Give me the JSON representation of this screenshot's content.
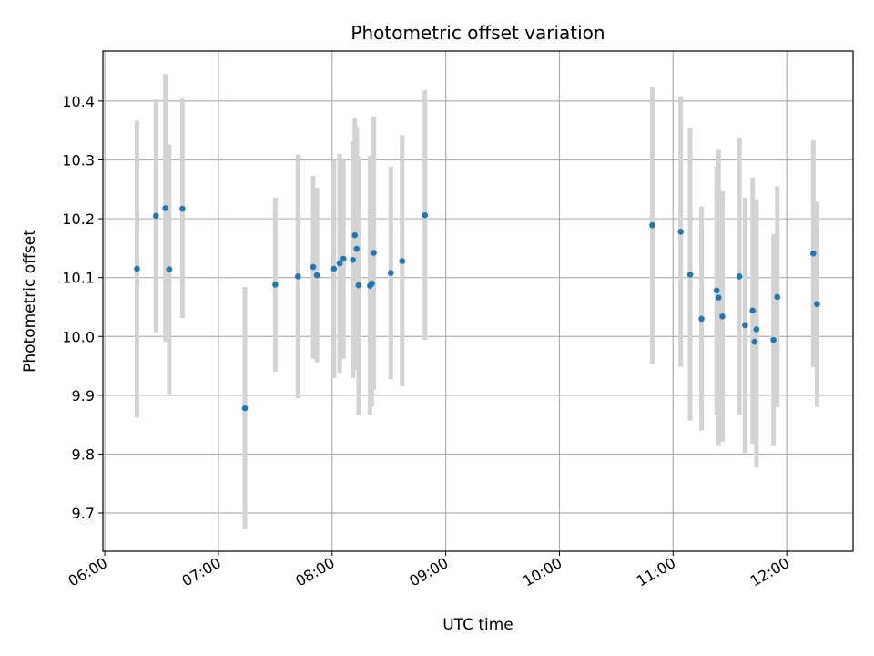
{
  "chart_data": {
    "type": "scatter",
    "title": "Photometric offset variation",
    "xlabel": "UTC time",
    "ylabel": "Photometric offset",
    "x_axis": "time",
    "xlim": [
      "05:59",
      "12:35"
    ],
    "ylim": [
      9.635,
      10.485
    ],
    "xticks": [
      "06:00",
      "07:00",
      "08:00",
      "09:00",
      "10:00",
      "11:00",
      "12:00"
    ],
    "yticks": [
      9.7,
      9.8,
      9.9,
      10.0,
      10.1,
      10.2,
      10.3,
      10.4
    ],
    "ytick_labels": [
      "9.7",
      "9.8",
      "9.9",
      "10.0",
      "10.1",
      "10.2",
      "10.3",
      "10.4"
    ],
    "grid": true,
    "marker_color": "#1f77b4",
    "errorbar_color": "#d3d3d3",
    "series": [
      {
        "points": [
          {
            "x": "06:17",
            "y": 10.115,
            "yerr_low": 9.862,
            "yerr_high": 10.367
          },
          {
            "x": "06:27",
            "y": 10.205,
            "yerr_low": 10.007,
            "yerr_high": 10.403
          },
          {
            "x": "06:32",
            "y": 10.218,
            "yerr_low": 9.991,
            "yerr_high": 10.446
          },
          {
            "x": "06:34",
            "y": 10.114,
            "yerr_low": 9.902,
            "yerr_high": 10.326
          },
          {
            "x": "06:41",
            "y": 10.217,
            "yerr_low": 10.031,
            "yerr_high": 10.404
          },
          {
            "x": "07:14",
            "y": 9.878,
            "yerr_low": 9.672,
            "yerr_high": 10.084
          },
          {
            "x": "07:30",
            "y": 10.088,
            "yerr_low": 9.94,
            "yerr_high": 10.236
          },
          {
            "x": "07:42",
            "y": 10.102,
            "yerr_low": 9.895,
            "yerr_high": 10.309
          },
          {
            "x": "07:50",
            "y": 10.118,
            "yerr_low": 9.962,
            "yerr_high": 10.273
          },
          {
            "x": "07:52",
            "y": 10.104,
            "yerr_low": 9.956,
            "yerr_high": 10.253
          },
          {
            "x": "08:01",
            "y": 10.115,
            "yerr_low": 9.929,
            "yerr_high": 10.3
          },
          {
            "x": "08:04",
            "y": 10.124,
            "yerr_low": 9.938,
            "yerr_high": 10.31
          },
          {
            "x": "08:06",
            "y": 10.132,
            "yerr_low": 9.962,
            "yerr_high": 10.303
          },
          {
            "x": "08:11",
            "y": 10.13,
            "yerr_low": 9.929,
            "yerr_high": 10.331
          },
          {
            "x": "08:12",
            "y": 10.172,
            "yerr_low": 9.972,
            "yerr_high": 10.371
          },
          {
            "x": "08:13",
            "y": 10.149,
            "yerr_low": 9.943,
            "yerr_high": 10.356
          },
          {
            "x": "08:14",
            "y": 10.087,
            "yerr_low": 9.866,
            "yerr_high": 10.306
          },
          {
            "x": "08:20",
            "y": 10.086,
            "yerr_low": 9.866,
            "yerr_high": 10.307
          },
          {
            "x": "08:21",
            "y": 10.09,
            "yerr_low": 9.881,
            "yerr_high": 10.299
          },
          {
            "x": "08:22",
            "y": 10.142,
            "yerr_low": 9.91,
            "yerr_high": 10.374
          },
          {
            "x": "08:31",
            "y": 10.108,
            "yerr_low": 9.927,
            "yerr_high": 10.289
          },
          {
            "x": "08:37",
            "y": 10.128,
            "yerr_low": 9.915,
            "yerr_high": 10.342
          },
          {
            "x": "08:49",
            "y": 10.206,
            "yerr_low": 9.994,
            "yerr_high": 10.418
          },
          {
            "x": "10:49",
            "y": 10.189,
            "yerr_low": 9.954,
            "yerr_high": 10.423
          },
          {
            "x": "11:04",
            "y": 10.178,
            "yerr_low": 9.948,
            "yerr_high": 10.408
          },
          {
            "x": "11:09",
            "y": 10.105,
            "yerr_low": 9.857,
            "yerr_high": 10.355
          },
          {
            "x": "11:15",
            "y": 10.03,
            "yerr_low": 9.84,
            "yerr_high": 10.221
          },
          {
            "x": "11:23",
            "y": 10.078,
            "yerr_low": 9.867,
            "yerr_high": 10.289
          },
          {
            "x": "11:24",
            "y": 10.066,
            "yerr_low": 9.815,
            "yerr_high": 10.317
          },
          {
            "x": "11:26",
            "y": 10.034,
            "yerr_low": 9.821,
            "yerr_high": 10.247
          },
          {
            "x": "11:35",
            "y": 10.102,
            "yerr_low": 9.866,
            "yerr_high": 10.337
          },
          {
            "x": "11:38",
            "y": 10.019,
            "yerr_low": 9.802,
            "yerr_high": 10.236
          },
          {
            "x": "11:42",
            "y": 10.044,
            "yerr_low": 9.818,
            "yerr_high": 10.27
          },
          {
            "x": "11:43",
            "y": 9.991,
            "yerr_low": 9.817,
            "yerr_high": 10.165
          },
          {
            "x": "11:44",
            "y": 10.012,
            "yerr_low": 9.777,
            "yerr_high": 10.233
          },
          {
            "x": "11:53",
            "y": 9.994,
            "yerr_low": 9.815,
            "yerr_high": 10.174
          },
          {
            "x": "11:55",
            "y": 10.067,
            "yerr_low": 9.88,
            "yerr_high": 10.255
          },
          {
            "x": "12:14",
            "y": 10.141,
            "yerr_low": 9.948,
            "yerr_high": 10.333
          },
          {
            "x": "12:16",
            "y": 10.055,
            "yerr_low": 9.88,
            "yerr_high": 10.229
          }
        ]
      }
    ]
  }
}
